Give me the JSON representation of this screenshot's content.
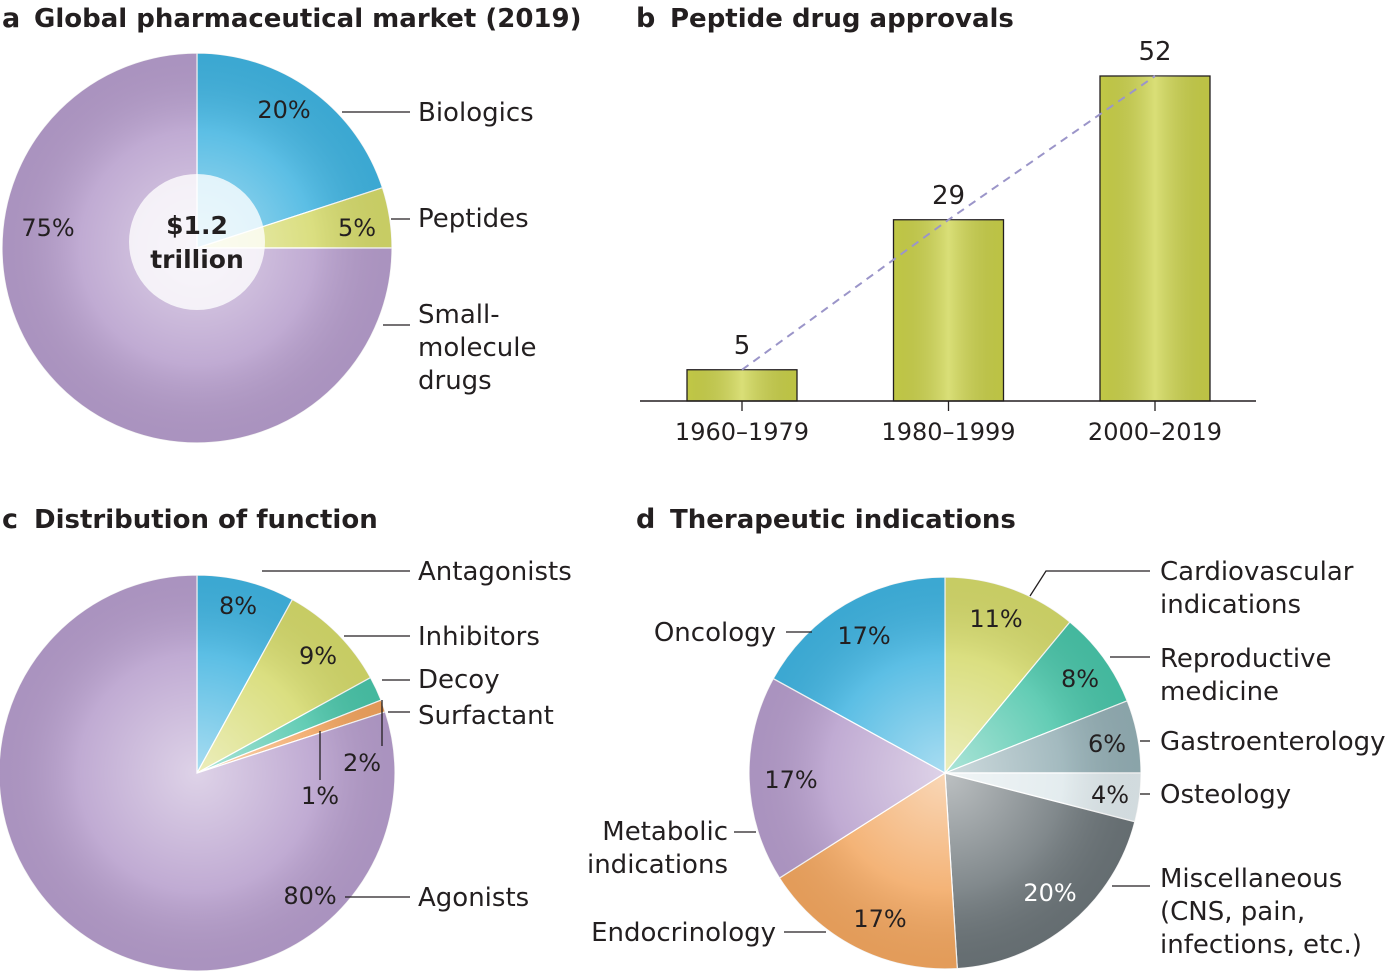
{
  "chart_data": [
    {
      "id": "a",
      "type": "pie",
      "letter": "a",
      "title": "Global pharmaceutical market (2019)",
      "center_label": [
        "$1.2",
        "trillion"
      ],
      "slices": [
        {
          "name": "Biologics",
          "value": 20,
          "label": "20%",
          "color": "#3fb3e0"
        },
        {
          "name": "Peptides",
          "value": 5,
          "label": "5%",
          "color": "#d4d96a"
        },
        {
          "name": "Small-molecule drugs",
          "value": 75,
          "label": "75%",
          "color": "#b59ccb"
        }
      ],
      "legend_lines": [
        [
          "Biologics"
        ],
        [
          "Peptides"
        ],
        [
          "Small-",
          "molecule",
          "drugs"
        ]
      ]
    },
    {
      "id": "b",
      "type": "bar",
      "letter": "b",
      "title": "Peptide drug approvals",
      "categories": [
        "1960–1979",
        "1980–1999",
        "2000–2019"
      ],
      "values": [
        5,
        29,
        52
      ],
      "labels": [
        "5",
        "29",
        "52"
      ],
      "ylim": [
        0,
        52
      ],
      "bar_color": "#cdd44a",
      "trend_color": "#9b95c9",
      "trend_line": true
    },
    {
      "id": "c",
      "type": "pie",
      "letter": "c",
      "title": "Distribution of function",
      "slices": [
        {
          "name": "Antagonists",
          "value": 8,
          "label": "8%",
          "color": "#3fb3e0"
        },
        {
          "name": "Inhibitors",
          "value": 9,
          "label": "9%",
          "color": "#d4d96a"
        },
        {
          "name": "Decoy",
          "value": 2,
          "label": "2%",
          "color": "#48c4a8"
        },
        {
          "name": "Surfactant",
          "value": 1,
          "label": "1%",
          "color": "#f0a25c"
        },
        {
          "name": "Agonists",
          "value": 80,
          "label": "80%",
          "color": "#b59ccb"
        }
      ],
      "legend": [
        "Antagonists",
        "Inhibitors",
        "Decoy",
        "Surfactant",
        "Agonists"
      ]
    },
    {
      "id": "d",
      "type": "pie",
      "letter": "d",
      "title": "Therapeutic indications",
      "slices": [
        {
          "name": "Cardiovascular indications",
          "value": 11,
          "label": "11%",
          "color": "#d4d96a"
        },
        {
          "name": "Reproductive medicine",
          "value": 8,
          "label": "8%",
          "color": "#48c4a8"
        },
        {
          "name": "Gastroenterology",
          "value": 6,
          "label": "6%",
          "color": "#93aeb4"
        },
        {
          "name": "Osteology",
          "value": 4,
          "label": "4%",
          "color": "#dfe9ec"
        },
        {
          "name": "Miscellaneous (CNS, pain, infections, etc.)",
          "value": 20,
          "label": "20%",
          "color": "#6b7478"
        },
        {
          "name": "Endocrinology",
          "value": 17,
          "label": "17%",
          "color": "#f2a65f"
        },
        {
          "name": "Metabolic indications",
          "value": 17,
          "label": "17%",
          "color": "#b59ccb"
        },
        {
          "name": "Oncology",
          "value": 17,
          "label": "17%",
          "color": "#3fb3e0"
        }
      ],
      "legend_lines": [
        [
          "Cardiovascular",
          "indications"
        ],
        [
          "Reproductive",
          "medicine"
        ],
        [
          "Gastroenterology"
        ],
        [
          "Osteology"
        ],
        [
          "Miscellaneous",
          "(CNS, pain,",
          "infections, etc.)"
        ],
        [
          "Endocrinology"
        ],
        [
          "Metabolic",
          "indications"
        ],
        [
          "Oncology"
        ]
      ]
    }
  ]
}
